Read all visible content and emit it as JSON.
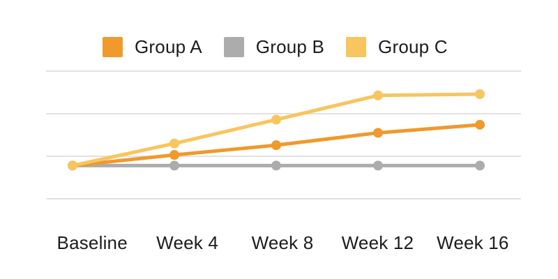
{
  "chart_data": {
    "type": "line",
    "categories": [
      "Baseline",
      "Week 4",
      "Week 8",
      "Week 12",
      "Week 16"
    ],
    "series": [
      {
        "name": "Group A",
        "color": "#F0992C",
        "values": [
          7.8,
          10.3,
          12.6,
          15.5,
          17.4
        ]
      },
      {
        "name": "Group B",
        "color": "#ACACAC",
        "values": [
          7.8,
          7.8,
          7.8,
          7.8,
          7.8
        ]
      },
      {
        "name": "Group C",
        "color": "#F8C55E",
        "values": [
          7.8,
          13.0,
          18.6,
          24.3,
          24.6
        ]
      }
    ],
    "title": "",
    "xlabel": "",
    "ylabel": "",
    "ylim": [
      0,
      30
    ],
    "gridline_values": [
      0,
      10,
      20,
      30
    ],
    "grid": "horizontal-only",
    "legend_position": "top",
    "notes": "y-axis has no visible tick labels; values estimated with gridline spacing = 10 units"
  },
  "colors": {
    "background": "#FFFFFF",
    "gridline": "#E2E2E2",
    "text": "#1C1C1C"
  }
}
